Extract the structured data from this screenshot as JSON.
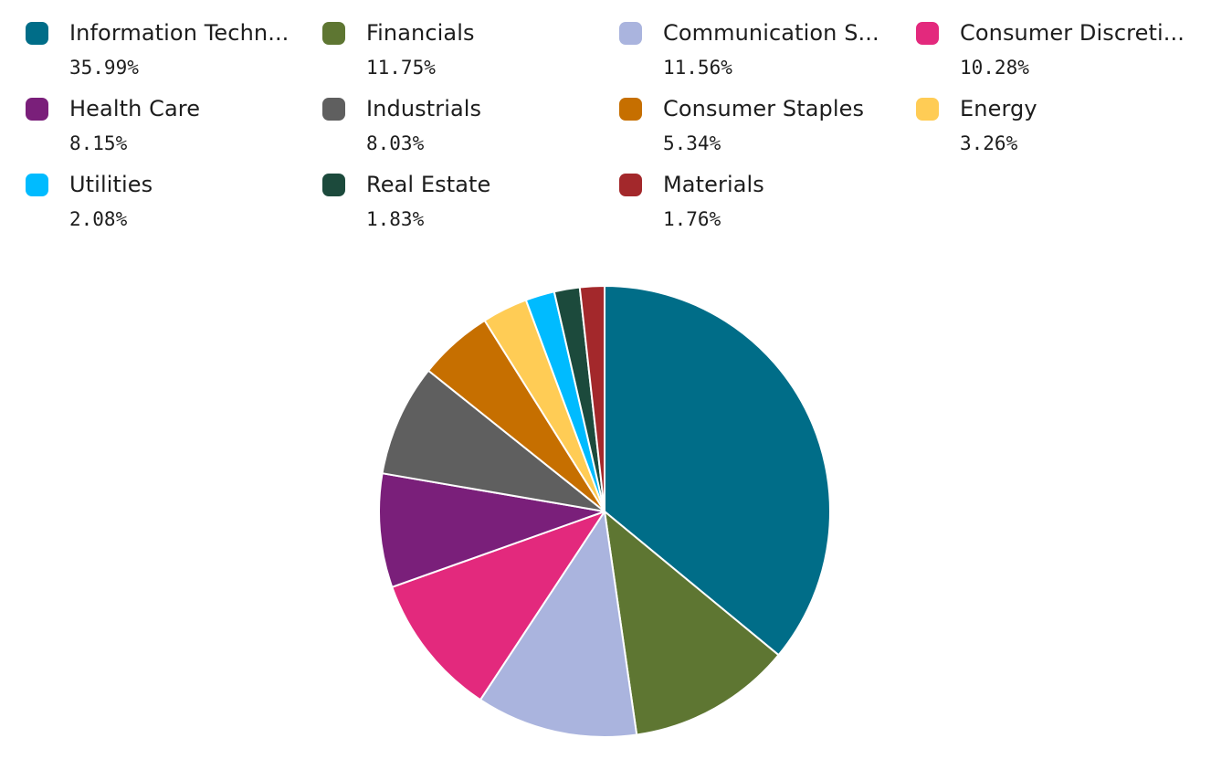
{
  "chart_data": {
    "type": "pie",
    "slices": [
      {
        "label": "Information Techn...",
        "value": 35.99,
        "display": "35.99%",
        "color": "#006d88"
      },
      {
        "label": "Financials",
        "value": 11.75,
        "display": "11.75%",
        "color": "#5e7632"
      },
      {
        "label": "Communication S...",
        "value": 11.56,
        "display": "11.56%",
        "color": "#aab4de"
      },
      {
        "label": "Consumer Discreti...",
        "value": 10.28,
        "display": "10.28%",
        "color": "#e3297d"
      },
      {
        "label": "Health Care",
        "value": 8.15,
        "display": "8.15%",
        "color": "#7a1f7a"
      },
      {
        "label": "Industrials",
        "value": 8.03,
        "display": "8.03%",
        "color": "#5f5f5f"
      },
      {
        "label": "Consumer Staples",
        "value": 5.34,
        "display": "5.34%",
        "color": "#c66f00"
      },
      {
        "label": "Energy",
        "value": 3.26,
        "display": "3.26%",
        "color": "#ffcc55"
      },
      {
        "label": "Utilities",
        "value": 2.08,
        "display": "2.08%",
        "color": "#00bbff"
      },
      {
        "label": "Real Estate",
        "value": 1.83,
        "display": "1.83%",
        "color": "#1c4a3c"
      },
      {
        "label": "Materials",
        "value": 1.76,
        "display": "1.76%",
        "color": "#a3282b"
      }
    ],
    "legend_placement": "top"
  }
}
